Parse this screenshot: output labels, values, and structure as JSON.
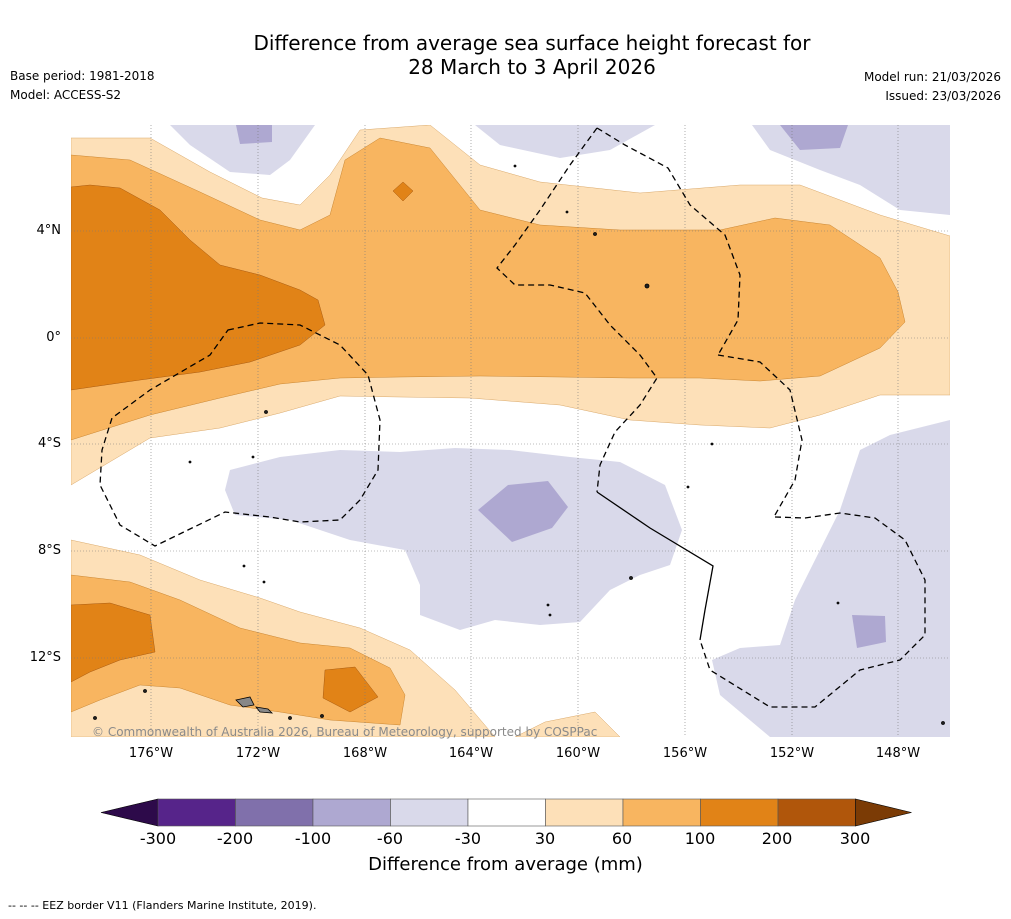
{
  "title_line1": "Difference from average sea surface height forecast for",
  "title_line2": "28 March to 3 April 2026",
  "base_period": "Base period: 1981-2018",
  "model": "Model: ACCESS-S2",
  "model_run": "Model run: 21/03/2026",
  "issued": "Issued: 23/03/2026",
  "lat_labels": [
    "4°N",
    "0°",
    "4°S",
    "8°S",
    "12°S"
  ],
  "lon_labels": [
    "176°W",
    "172°W",
    "168°W",
    "164°W",
    "160°W",
    "156°W",
    "152°W",
    "148°W"
  ],
  "copyright": "© Commonwealth of Australia 2026, Bureau of Meteorology, supported by COSPPac",
  "colorbar": {
    "title": "Difference from average (mm)",
    "ticks": [
      "-300",
      "-200",
      "-100",
      "-60",
      "-30",
      "30",
      "60",
      "100",
      "200",
      "300"
    ],
    "colors": [
      "#2d0a4a",
      "#56248a",
      "#8070ab",
      "#aea8d1",
      "#d9d9ea",
      "#ffffff",
      "#fde0b8",
      "#f8b560",
      "#e18317",
      "#b0560b",
      "#7b3b05"
    ]
  },
  "footnote": "--  --  -- EEZ border V11 (Flanders Marine Institute, 2019)."
}
